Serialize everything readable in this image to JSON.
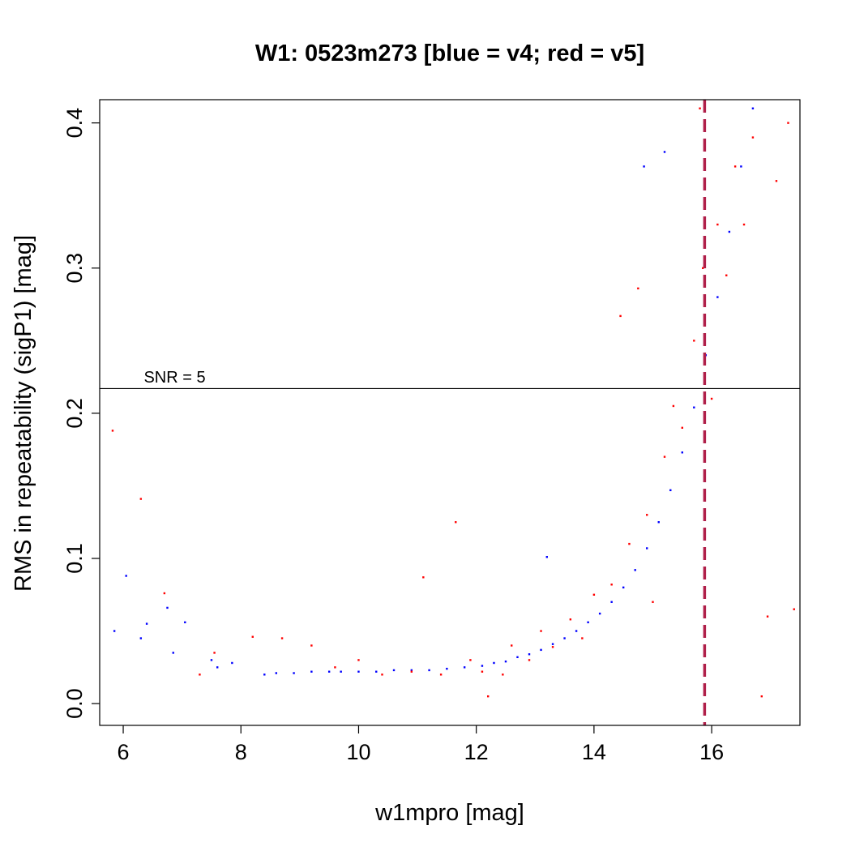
{
  "chart_data": {
    "type": "scatter",
    "title": "W1: 0523m273 [blue = v4; red = v5]",
    "xlabel": "w1mpro [mag]",
    "ylabel": "RMS in repeatability (sigP1) [mag]",
    "xlim": [
      5.6,
      17.5
    ],
    "ylim": [
      -0.015,
      0.416
    ],
    "xticks": [
      6,
      8,
      10,
      12,
      14,
      16
    ],
    "yticks": [
      0.0,
      0.1,
      0.2,
      0.3,
      0.4
    ],
    "xtick_labels": [
      "6",
      "8",
      "10",
      "12",
      "14",
      "16"
    ],
    "ytick_labels": [
      "0.0",
      "0.1",
      "0.2",
      "0.3",
      "0.4"
    ],
    "grid": false,
    "legend": "none",
    "annotations": [
      {
        "text": "SNR = 5",
        "x": 6.35,
        "y": 0.225
      },
      {
        "type": "hline",
        "y": 0.217,
        "color": "#000000",
        "style": "solid"
      },
      {
        "type": "vline",
        "x": 15.88,
        "color": "#b0204a",
        "style": "dashed"
      }
    ],
    "series": [
      {
        "color": "#0000ff",
        "points": [
          [
            5.85,
            0.05
          ],
          [
            6.05,
            0.088
          ],
          [
            6.3,
            0.045
          ],
          [
            6.4,
            0.055
          ],
          [
            6.75,
            0.066
          ],
          [
            6.85,
            0.035
          ],
          [
            7.05,
            0.056
          ],
          [
            7.5,
            0.03
          ],
          [
            7.6,
            0.025
          ],
          [
            7.85,
            0.028
          ],
          [
            8.4,
            0.02
          ],
          [
            8.6,
            0.021
          ],
          [
            8.9,
            0.021
          ],
          [
            9.2,
            0.022
          ],
          [
            9.5,
            0.022
          ],
          [
            9.7,
            0.022
          ],
          [
            10.0,
            0.022
          ],
          [
            10.3,
            0.022
          ],
          [
            10.6,
            0.023
          ],
          [
            10.9,
            0.023
          ],
          [
            11.2,
            0.023
          ],
          [
            11.5,
            0.024
          ],
          [
            11.8,
            0.025
          ],
          [
            12.1,
            0.026
          ],
          [
            12.3,
            0.028
          ],
          [
            12.5,
            0.029
          ],
          [
            12.7,
            0.032
          ],
          [
            12.9,
            0.034
          ],
          [
            13.1,
            0.037
          ],
          [
            13.3,
            0.041
          ],
          [
            13.5,
            0.045
          ],
          [
            13.7,
            0.05
          ],
          [
            13.9,
            0.056
          ],
          [
            14.1,
            0.062
          ],
          [
            14.3,
            0.07
          ],
          [
            14.5,
            0.08
          ],
          [
            14.7,
            0.092
          ],
          [
            14.9,
            0.107
          ],
          [
            15.1,
            0.125
          ],
          [
            15.3,
            0.147
          ],
          [
            15.5,
            0.173
          ],
          [
            15.7,
            0.204
          ],
          [
            15.9,
            0.24
          ],
          [
            16.1,
            0.28
          ],
          [
            16.3,
            0.325
          ],
          [
            16.5,
            0.37
          ],
          [
            16.7,
            0.41
          ],
          [
            13.2,
            0.101
          ],
          [
            14.85,
            0.37
          ],
          [
            15.2,
            0.38
          ]
        ]
      },
      {
        "color": "#ff0000",
        "points": [
          [
            5.82,
            0.188
          ],
          [
            6.3,
            0.141
          ],
          [
            6.7,
            0.076
          ],
          [
            7.3,
            0.02
          ],
          [
            7.55,
            0.035
          ],
          [
            8.2,
            0.046
          ],
          [
            8.7,
            0.045
          ],
          [
            9.2,
            0.04
          ],
          [
            9.6,
            0.025
          ],
          [
            10.0,
            0.03
          ],
          [
            10.4,
            0.02
          ],
          [
            10.9,
            0.022
          ],
          [
            11.1,
            0.087
          ],
          [
            11.4,
            0.02
          ],
          [
            11.65,
            0.125
          ],
          [
            11.9,
            0.03
          ],
          [
            12.1,
            0.022
          ],
          [
            12.2,
            0.005
          ],
          [
            12.45,
            0.02
          ],
          [
            12.6,
            0.04
          ],
          [
            12.9,
            0.03
          ],
          [
            13.1,
            0.05
          ],
          [
            13.3,
            0.039
          ],
          [
            13.6,
            0.058
          ],
          [
            13.8,
            0.045
          ],
          [
            14.0,
            0.075
          ],
          [
            14.3,
            0.082
          ],
          [
            14.45,
            0.267
          ],
          [
            14.6,
            0.11
          ],
          [
            14.75,
            0.286
          ],
          [
            14.9,
            0.13
          ],
          [
            15.0,
            0.07
          ],
          [
            15.2,
            0.17
          ],
          [
            15.35,
            0.205
          ],
          [
            15.5,
            0.19
          ],
          [
            15.7,
            0.25
          ],
          [
            15.8,
            0.41
          ],
          [
            15.85,
            0.3
          ],
          [
            16.0,
            0.21
          ],
          [
            16.1,
            0.33
          ],
          [
            16.25,
            0.295
          ],
          [
            16.4,
            0.37
          ],
          [
            16.55,
            0.33
          ],
          [
            16.7,
            0.39
          ],
          [
            16.85,
            0.005
          ],
          [
            16.95,
            0.06
          ],
          [
            17.1,
            0.36
          ],
          [
            17.3,
            0.4
          ],
          [
            17.4,
            0.065
          ]
        ]
      }
    ]
  }
}
